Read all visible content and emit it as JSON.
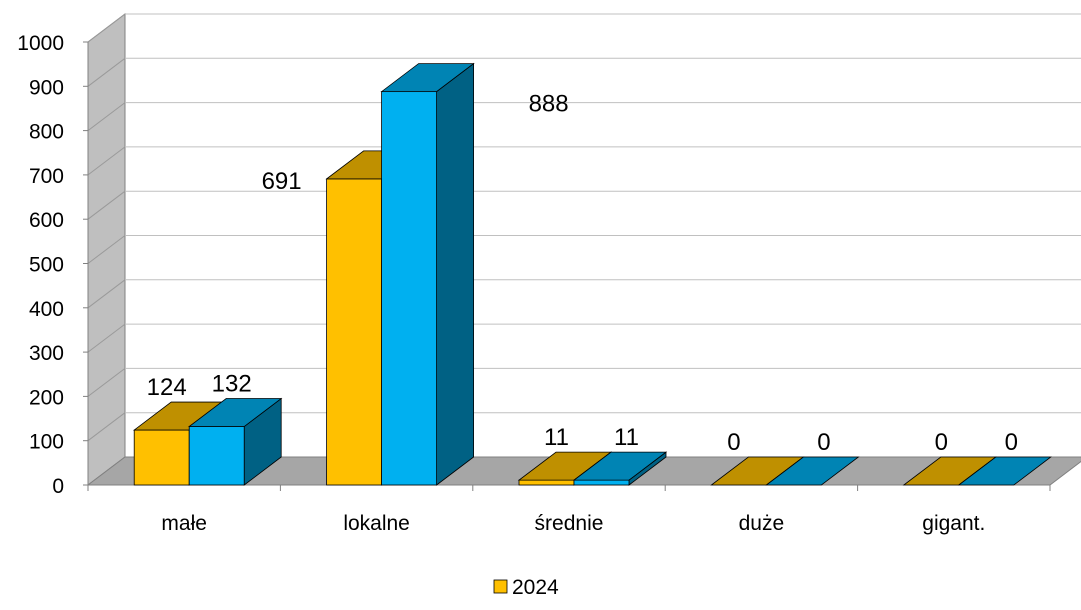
{
  "chart_data": {
    "type": "bar",
    "categories": [
      "małe",
      "lokalne",
      "średnie",
      "duże",
      "gigant."
    ],
    "series": [
      {
        "name": "2024",
        "values": [
          124,
          691,
          11,
          0,
          0
        ],
        "color": "#FFC000"
      },
      {
        "name": "",
        "values": [
          132,
          888,
          11,
          0,
          0
        ],
        "color": "#00B0F0"
      }
    ],
    "data_labels": [
      [
        "124",
        "691",
        "11",
        "0",
        "0"
      ],
      [
        "132",
        "888",
        "11",
        "0",
        "0"
      ]
    ],
    "ylim": [
      0,
      1000
    ],
    "yticks": [
      "0",
      "100",
      "200",
      "300",
      "400",
      "500",
      "600",
      "700",
      "800",
      "900",
      "1000"
    ],
    "grid": true,
    "three_d": true,
    "legend": {
      "position": "bottom",
      "entries": [
        "2024"
      ]
    },
    "colors": {
      "wall": "#bfbfbf",
      "floor": "#a6a6a6",
      "gridline": "#c0c0c0"
    }
  }
}
